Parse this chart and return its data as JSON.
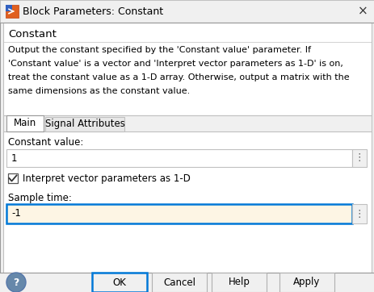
{
  "title": "Block Parameters: Constant",
  "section_title": "Constant",
  "desc_line1": "Output the constant specified by the 'Constant value' parameter. If",
  "desc_line2": "'Constant value' is a vector and 'Interpret vector parameters as 1-D' is on,",
  "desc_line3": "treat the constant value as a 1-D array. Otherwise, output a matrix with the",
  "desc_line4": "same dimensions as the constant value.",
  "tab1": "Main",
  "tab2": "Signal Attributes",
  "field1_label": "Constant value:",
  "field1_value": "1",
  "checkbox_label": "Interpret vector parameters as 1-D",
  "field2_label": "Sample time:",
  "field2_value": "-1",
  "btn_ok": "OK",
  "btn_cancel": "Cancel",
  "btn_help": "Help",
  "btn_apply": "Apply",
  "bg_color": "#f0f0f0",
  "title_bar_bg": "#f0f0f0",
  "border_color": "#c0c0c0",
  "dark_border": "#999999",
  "tab_active_bg": "#ffffff",
  "tab_inactive_bg": "#e8e8e8",
  "input_bg": "#ffffff",
  "input_active_bg": "#fdf5e4",
  "input_border_active": "#0078d7",
  "btn_border_active": "#0078d7",
  "btn_border_normal": "#b0b0b0",
  "text_color": "#000000",
  "inner_panel_bg": "#ffffff",
  "dots_color": "#606060",
  "help_icon_bg": "#6688aa",
  "help_icon_border": "#5577aa"
}
